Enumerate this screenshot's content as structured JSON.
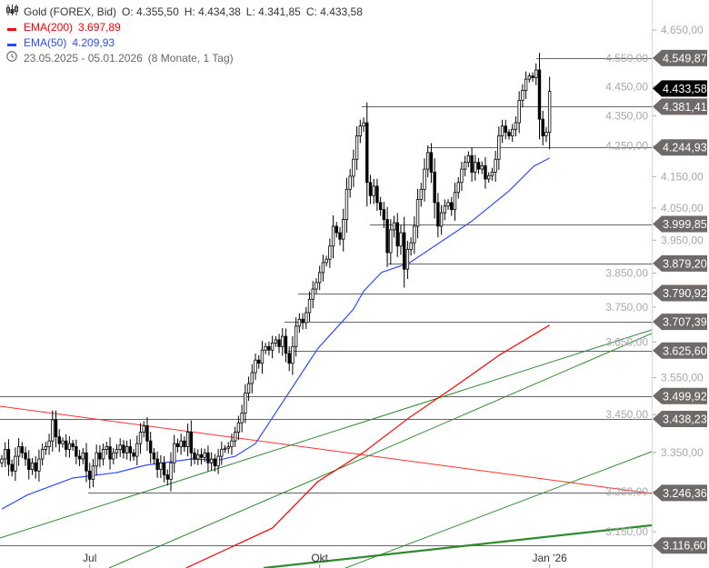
{
  "header": {
    "instrument": "Gold (FOREX, Bid)",
    "open": "O: 4.355,50",
    "high": "H: 4.434,38",
    "low": "L: 4.341,85",
    "close": "C: 4.433,58",
    "ema200_label": "EMA(200)",
    "ema200_value": "3.697,89",
    "ema50_label": "EMA(50)",
    "ema50_value": "4.209,93",
    "date_range": "23.05.2025 - 05.01.2026",
    "period": "(8 Monate, 1 Tag)",
    "icons": {
      "instrument": "candlestick-icon",
      "date": "clock-icon"
    }
  },
  "colors": {
    "ema200": "#ff0000",
    "ema50": "#2b4cff",
    "trendline_green": "#2e8b2e",
    "level_line": "#666666",
    "tag": "#6e6a67",
    "current_tag": "#000000",
    "candle_up": "#ffffff",
    "candle_down": "#000000"
  },
  "chart_data": {
    "type": "candlestick",
    "scale": "log",
    "ylim": [
      3080,
      4780
    ],
    "x_labels": [
      {
        "label": "Jul",
        "index": 26
      },
      {
        "label": "Okt",
        "index": 94
      },
      {
        "label": "Jan '26",
        "index": 162
      }
    ],
    "y_ticks": [
      {
        "value": 4650,
        "label": "4.650,00"
      },
      {
        "value": 4550,
        "label": "4.550,00"
      },
      {
        "value": 4450,
        "label": "4.450,00"
      },
      {
        "value": 4350,
        "label": "4.350,00"
      },
      {
        "value": 4250,
        "label": "4.250,00"
      },
      {
        "value": 4150,
        "label": "4.150,00"
      },
      {
        "value": 4050,
        "label": "4.050,00"
      },
      {
        "value": 3950,
        "label": "3.950,00"
      },
      {
        "value": 3850,
        "label": "3.850,00"
      },
      {
        "value": 3750,
        "label": "3.750,00"
      },
      {
        "value": 3650,
        "label": "3.650,00"
      },
      {
        "value": 3550,
        "label": "3.550,00"
      },
      {
        "value": 3450,
        "label": "3.450,00"
      },
      {
        "value": 3350,
        "label": "3.350,00"
      },
      {
        "value": 3250,
        "label": "3.250,00"
      },
      {
        "value": 3150,
        "label": "3.150,00"
      }
    ],
    "levels": [
      {
        "value": 4549.87,
        "label": "4.549,87"
      },
      {
        "value": 4381.41,
        "label": "4.381,41"
      },
      {
        "value": 4244.93,
        "label": "4.244,93"
      },
      {
        "value": 3999.85,
        "label": "3.999,85"
      },
      {
        "value": 3879.2,
        "label": "3.879,20"
      },
      {
        "value": 3790.92,
        "label": "3.790,92"
      },
      {
        "value": 3707.39,
        "label": "3.707,39"
      },
      {
        "value": 3625.6,
        "label": "3.625,60"
      },
      {
        "value": 3499.92,
        "label": "3.499,92"
      },
      {
        "value": 3438.23,
        "label": "3.438,23"
      },
      {
        "value": 3246.36,
        "label": "3.246,36"
      },
      {
        "value": 3116.6,
        "label": "3.116,60"
      }
    ],
    "current_price": {
      "value": 4433.58,
      "label": "4.433,58"
    },
    "closes": [
      3333,
      3358,
      3319,
      3302,
      3340,
      3365,
      3349,
      3333,
      3306,
      3323,
      3302,
      3333,
      3358,
      3365,
      3380,
      3436,
      3391,
      3373,
      3380,
      3358,
      3373,
      3365,
      3340,
      3333,
      3349,
      3302,
      3281,
      3315,
      3349,
      3333,
      3358,
      3365,
      3333,
      3349,
      3358,
      3369,
      3349,
      3365,
      3349,
      3340,
      3373,
      3403,
      3420,
      3380,
      3349,
      3333,
      3306,
      3323,
      3292,
      3281,
      3323,
      3373,
      3365,
      3380,
      3365,
      3403,
      3349,
      3333,
      3344,
      3337,
      3349,
      3323,
      3333,
      3315,
      3340,
      3358,
      3361,
      3365,
      3380,
      3403,
      3428,
      3454,
      3508,
      3534,
      3564,
      3599,
      3590,
      3627,
      3637,
      3627,
      3647,
      3656,
      3637,
      3666,
      3618,
      3590,
      3637,
      3695,
      3715,
      3705,
      3734,
      3773,
      3803,
      3822,
      3852,
      3882,
      3892,
      3932,
      3993,
      3973,
      3953,
      4014,
      4109,
      4151,
      4206,
      4283,
      4316,
      4327,
      4131,
      4089,
      4119,
      4067,
      4045,
      4014,
      3912,
      3982,
      4004,
      3932,
      3973,
      3862,
      3922,
      3942,
      3993,
      4077,
      4109,
      4174,
      4228,
      4164,
      4067,
      3993,
      4035,
      4056,
      4067,
      4045,
      4099,
      4131,
      4174,
      4196,
      4218,
      4164,
      4196,
      4174,
      4185,
      4142,
      4153,
      4164,
      4206,
      4283,
      4316,
      4295,
      4283,
      4305,
      4327,
      4403,
      4437,
      4476,
      4487,
      4481,
      4508,
      4339,
      4283,
      4295,
      4433.58
    ],
    "ema50": [
      [
        0,
        3206
      ],
      [
        7.5,
        3241
      ],
      [
        21,
        3284
      ],
      [
        34,
        3298
      ],
      [
        42.5,
        3317
      ],
      [
        56,
        3333
      ],
      [
        64,
        3330
      ],
      [
        69,
        3340
      ],
      [
        75,
        3373
      ],
      [
        80,
        3441
      ],
      [
        93.5,
        3632
      ],
      [
        104,
        3744
      ],
      [
        107,
        3797
      ],
      [
        112.4,
        3853
      ],
      [
        120.4,
        3880
      ],
      [
        139,
        4009
      ],
      [
        150,
        4104
      ],
      [
        157.3,
        4183
      ],
      [
        162,
        4209.93
      ]
    ],
    "ema200": [
      [
        54.6,
        3063
      ],
      [
        80,
        3159
      ],
      [
        93.5,
        3275
      ],
      [
        107,
        3350
      ],
      [
        120.4,
        3441
      ],
      [
        134,
        3526
      ],
      [
        147.3,
        3614
      ],
      [
        162,
        3697.89
      ]
    ]
  }
}
